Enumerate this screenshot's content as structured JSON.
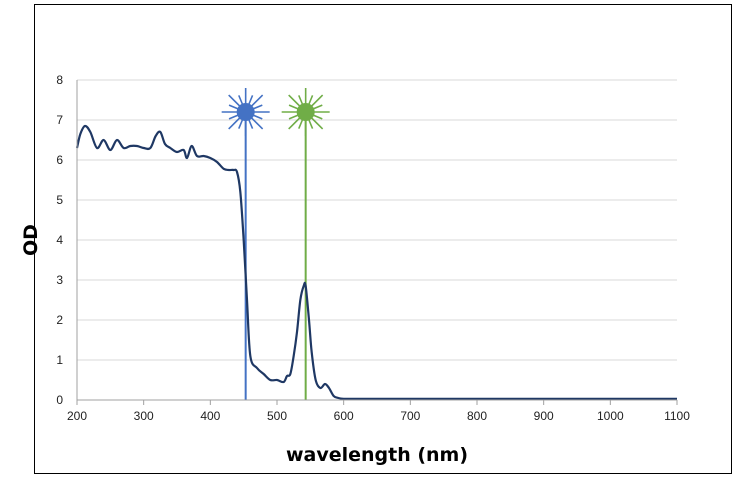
{
  "chart_data": {
    "type": "line",
    "title": "",
    "xlabel": "wavelength (nm)",
    "ylabel": "OD",
    "xlim": [
      200,
      1100
    ],
    "ylim": [
      0,
      8
    ],
    "x_ticks": [
      200,
      300,
      400,
      500,
      600,
      700,
      800,
      900,
      1000,
      1100
    ],
    "y_ticks": [
      0,
      1,
      2,
      3,
      4,
      5,
      6,
      7,
      8
    ],
    "grid": "horizontal",
    "legend": "none",
    "series": [
      {
        "color": "#1f3864",
        "x": [
          200,
          205,
          212,
          220,
          230,
          240,
          250,
          260,
          270,
          280,
          290,
          300,
          310,
          318,
          325,
          332,
          340,
          350,
          360,
          365,
          372,
          380,
          390,
          400,
          410,
          420,
          428,
          435,
          440,
          445,
          450,
          455,
          460,
          470,
          480,
          490,
          500,
          510,
          515,
          520,
          525,
          530,
          535,
          540,
          543,
          548,
          552,
          558,
          565,
          572,
          578,
          585,
          592,
          600,
          610,
          650,
          700,
          800,
          900,
          1000,
          1100
        ],
        "y": [
          6.3,
          6.65,
          6.85,
          6.7,
          6.3,
          6.5,
          6.25,
          6.5,
          6.3,
          6.35,
          6.35,
          6.3,
          6.3,
          6.6,
          6.7,
          6.4,
          6.3,
          6.2,
          6.25,
          6.05,
          6.35,
          6.1,
          6.1,
          6.05,
          5.95,
          5.78,
          5.75,
          5.75,
          5.7,
          5.2,
          4.0,
          2.5,
          1.1,
          0.8,
          0.65,
          0.5,
          0.5,
          0.45,
          0.6,
          0.65,
          1.1,
          1.7,
          2.5,
          2.85,
          2.85,
          2.0,
          1.2,
          0.5,
          0.3,
          0.4,
          0.3,
          0.1,
          0.05,
          0.03,
          0.03,
          0.03,
          0.03,
          0.03,
          0.03,
          0.03,
          0.03
        ]
      }
    ],
    "markers": [
      {
        "name": "blue-laser",
        "x": 453,
        "color": "#4472c4"
      },
      {
        "name": "green-laser",
        "x": 543,
        "color": "#70ad47"
      }
    ]
  }
}
